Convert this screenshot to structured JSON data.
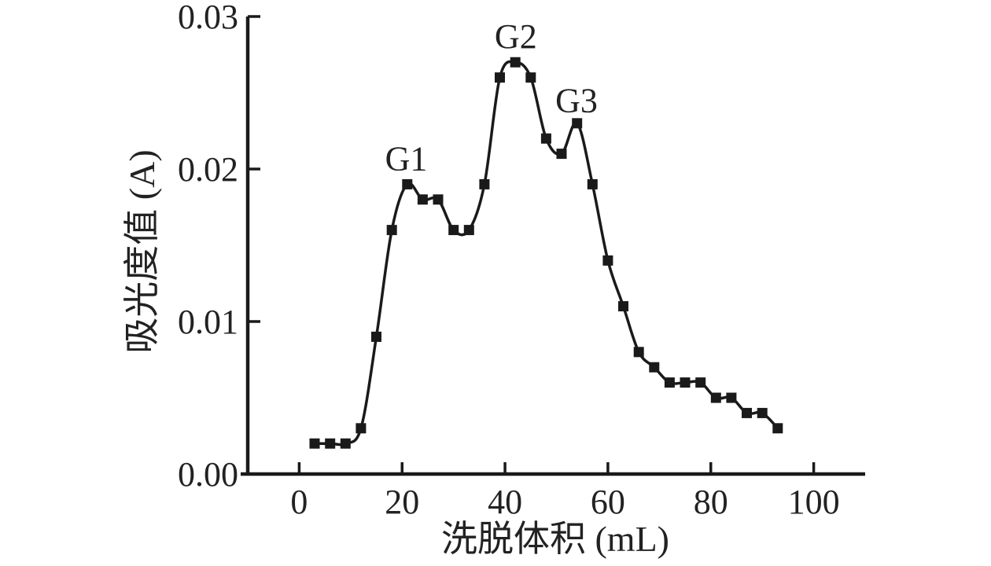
{
  "chart_data": {
    "type": "line",
    "title": "",
    "xlabel": "洗脱体积 (mL)",
    "ylabel": "吸光度值 (A)",
    "xlim": [
      -10,
      110
    ],
    "ylim": [
      0,
      0.03
    ],
    "grid": false,
    "legend": "none",
    "line_color": "#1a1a1a",
    "marker": "square",
    "marker_color": "#1a1a1a",
    "background_color": "#ffffff",
    "x": [
      3,
      6,
      9,
      12,
      15,
      18,
      21,
      24,
      27,
      30,
      33,
      36,
      39,
      42,
      45,
      48,
      51,
      54,
      57,
      60,
      63,
      66,
      69,
      72,
      75,
      78,
      81,
      84,
      87,
      90,
      93
    ],
    "y": [
      0.002,
      0.002,
      0.002,
      0.003,
      0.009,
      0.016,
      0.019,
      0.018,
      0.018,
      0.016,
      0.016,
      0.019,
      0.026,
      0.027,
      0.026,
      0.022,
      0.021,
      0.023,
      0.019,
      0.014,
      0.011,
      0.008,
      0.007,
      0.006,
      0.006,
      0.006,
      0.005,
      0.005,
      0.004,
      0.004,
      0.003
    ],
    "xticks": [
      {
        "value": 0,
        "label": "0"
      },
      {
        "value": 20,
        "label": "20"
      },
      {
        "value": 40,
        "label": "40"
      },
      {
        "value": 60,
        "label": "60"
      },
      {
        "value": 80,
        "label": "80"
      },
      {
        "value": 100,
        "label": "100"
      }
    ],
    "yticks": [
      {
        "value": 0.0,
        "label": "0.00"
      },
      {
        "value": 0.01,
        "label": "0.01"
      },
      {
        "value": 0.02,
        "label": "0.02"
      },
      {
        "value": 0.03,
        "label": "0.03"
      }
    ],
    "annotations": [
      {
        "label": "G1",
        "x": 20.8,
        "y": 0.0207
      },
      {
        "label": "G2",
        "x": 42.1,
        "y": 0.0287
      },
      {
        "label": "G3",
        "x": 53.9,
        "y": 0.0245
      }
    ]
  }
}
